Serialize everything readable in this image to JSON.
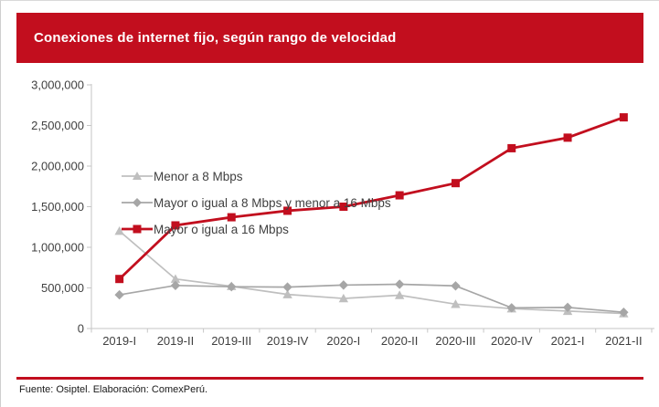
{
  "header": {
    "title": "Conexiones de internet fijo, según rango de velocidad"
  },
  "footer": {
    "source": "Fuente: Osiptel. Elaboración: ComexPerú."
  },
  "colors": {
    "accent_red": "#c20e1e",
    "series_light_gray": "#bfbfbf",
    "series_gray": "#a6a6a6",
    "axis_line": "#c6c6c6",
    "tick_text": "#404040"
  },
  "chart_data": {
    "type": "line",
    "title": "Conexiones de internet fijo, según rango de velocidad",
    "xlabel": "",
    "ylabel": "",
    "categories": [
      "2019-I",
      "2019-II",
      "2019-III",
      "2019-IV",
      "2020-I",
      "2020-II",
      "2020-III",
      "2020-IV",
      "2021-I",
      "2021-II"
    ],
    "series": [
      {
        "name": "Menor a 8 Mbps",
        "marker": "triangle",
        "color": "#bfbfbf",
        "values": [
          1200000,
          610000,
          520000,
          420000,
          370000,
          410000,
          300000,
          245000,
          215000,
          185000
        ]
      },
      {
        "name": "Mayor o igual a 8 Mbps y menor a 16 Mbps",
        "marker": "diamond",
        "color": "#a6a6a6",
        "values": [
          415000,
          530000,
          515000,
          510000,
          535000,
          545000,
          525000,
          255000,
          260000,
          200000
        ]
      },
      {
        "name": "Mayor o igual a 16 Mbps",
        "marker": "square",
        "color": "#c20e1e",
        "values": [
          610000,
          1270000,
          1370000,
          1450000,
          1500000,
          1640000,
          1790000,
          2220000,
          2350000,
          2600000
        ]
      }
    ],
    "ylim": [
      0,
      3000000
    ],
    "ytick_step": 500000,
    "ytick_labels": [
      "0",
      "500,000",
      "1,000,000",
      "1,500,000",
      "2,000,000",
      "2,500,000",
      "3,000,000"
    ],
    "grid": false,
    "legend_position": "top-left-inside"
  }
}
